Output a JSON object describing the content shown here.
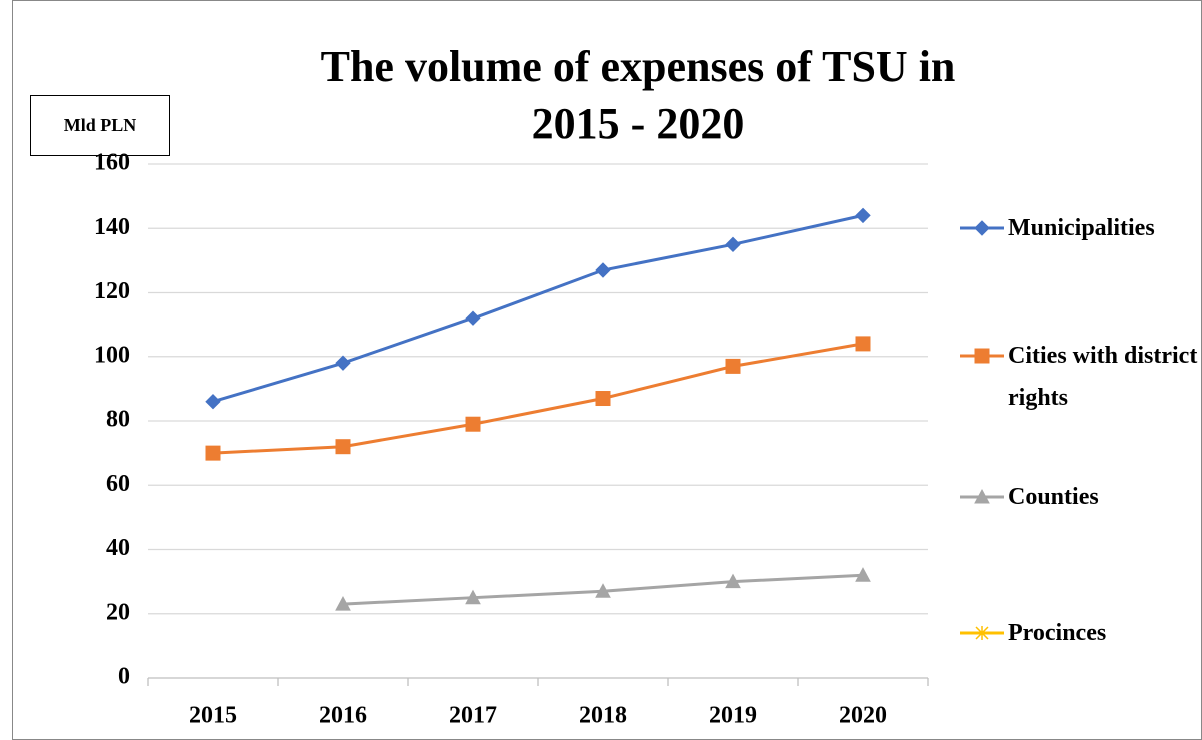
{
  "chart_data": {
    "type": "line",
    "title": "The volume of expenses of TSU in 2015 - 2020",
    "y_label": "Mld PLN",
    "categories": [
      "2015",
      "2016",
      "2017",
      "2018",
      "2019",
      "2020"
    ],
    "series": [
      {
        "name": "Municipalities",
        "color": "#4472c4",
        "marker": "diamond",
        "values": [
          86,
          98,
          112,
          127,
          135,
          144
        ]
      },
      {
        "name": "Cities with district rights",
        "color": "#ed7d31",
        "marker": "square",
        "values": [
          70,
          72,
          79,
          87,
          97,
          104
        ]
      },
      {
        "name": "Counties",
        "color": "#a5a5a5",
        "marker": "triangle",
        "values": [
          null,
          23,
          25,
          27,
          30,
          32
        ]
      },
      {
        "name": "Procinces",
        "color": "#ffc000",
        "marker": "x",
        "values": [
          null,
          null,
          null,
          null,
          null,
          null
        ]
      }
    ],
    "ylim": [
      0,
      160
    ],
    "yticks": [
      0,
      20,
      40,
      60,
      80,
      100,
      120,
      140,
      160
    ],
    "grid": true,
    "legend": "right"
  }
}
